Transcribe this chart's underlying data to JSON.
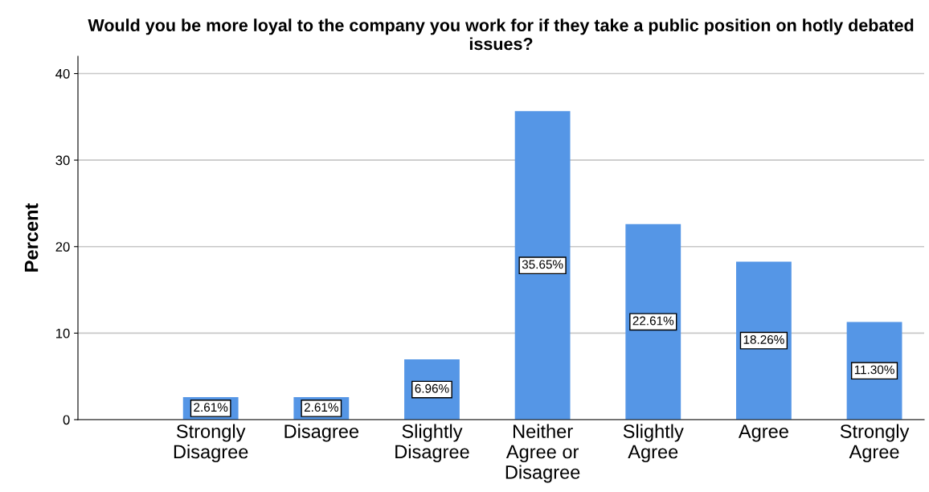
{
  "chart_data": {
    "type": "bar",
    "title": "Would you be more loyal to the company you work for if they take a public position on hotly debated issues?",
    "ylabel": "Percent",
    "categories": [
      "Strongly\nDisagree",
      "Disagree",
      "Slightly\nDisagree",
      "Neither\nAgree or\nDisagree",
      "Slightly\nAgree",
      "Agree",
      "Strongly\nAgree"
    ],
    "values": [
      2.61,
      2.61,
      6.96,
      35.65,
      22.61,
      18.26,
      11.3
    ],
    "value_labels": [
      "2.61%",
      "2.61%",
      "6.96%",
      "35.65%",
      "22.61%",
      "18.26%",
      "11.30%"
    ],
    "color": "#5596e6",
    "ylim": [
      0,
      42
    ],
    "yticks": [
      0,
      10,
      20,
      30,
      40
    ],
    "grid": "y"
  }
}
